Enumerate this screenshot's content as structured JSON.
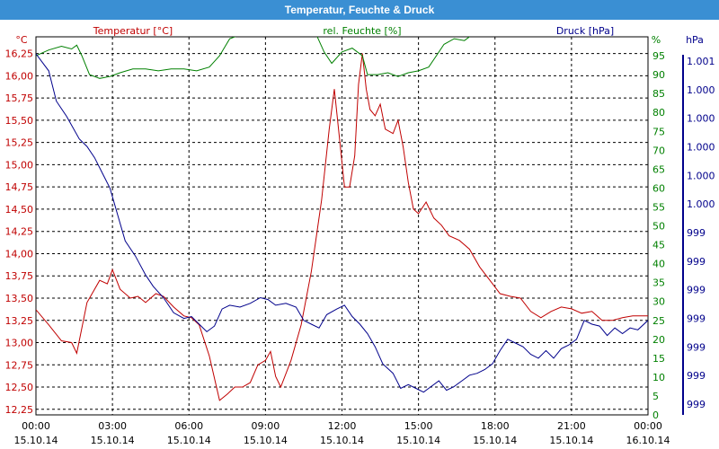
{
  "window": {
    "title": "Temperatur, Feuchte & Druck"
  },
  "chart_data": {
    "type": "line",
    "title": "Temperatur, Feuchte & Druck",
    "grid": true,
    "x": {
      "ticks": [
        {
          "time": "00:00",
          "date": "15.10.14"
        },
        {
          "time": "03:00",
          "date": "15.10.14"
        },
        {
          "time": "06:00",
          "date": "15.10.14"
        },
        {
          "time": "09:00",
          "date": "15.10.14"
        },
        {
          "time": "12:00",
          "date": "15.10.14"
        },
        {
          "time": "15:00",
          "date": "15.10.14"
        },
        {
          "time": "18:00",
          "date": "15.10.14"
        },
        {
          "time": "21:00",
          "date": "15.10.14"
        },
        {
          "time": "00:00",
          "date": "16.10.14"
        }
      ],
      "range": [
        "15.10.14 00:00",
        "16.10.14 00:00"
      ]
    },
    "axes": {
      "temperature": {
        "label": "Temperatur [°C]",
        "unit": "°C",
        "color": "#c00000",
        "ylim": [
          12.1875,
          16.4375
        ],
        "ticks": [
          "12,25",
          "12,50",
          "12,75",
          "13,00",
          "13,25",
          "13,50",
          "13,75",
          "14,00",
          "14,25",
          "14,50",
          "14,75",
          "15,00",
          "15,25",
          "15,50",
          "15,75",
          "16,00",
          "16,25"
        ]
      },
      "humidity": {
        "label": "rel. Feuchte [%]",
        "unit": "%",
        "color": "#008000",
        "ylim": [
          0,
          100
        ],
        "ticks": [
          "0",
          "5",
          "10",
          "15",
          "20",
          "25",
          "30",
          "35",
          "40",
          "45",
          "50",
          "55",
          "60",
          "65",
          "70",
          "75",
          "80",
          "85",
          "90",
          "95"
        ]
      },
      "pressure": {
        "label": "Druck [hPa]",
        "unit": "hPa",
        "color": "#00008b",
        "ticks": [
          "999",
          "999",
          "999",
          "999",
          "999",
          "999",
          "999",
          "1.000",
          "1.000",
          "1.000",
          "1.000",
          "1.000",
          "1.001"
        ]
      }
    },
    "series": [
      {
        "name": "Temperatur [°C]",
        "axis": "temperature",
        "color": "#c00000",
        "points": [
          [
            0.0,
            13.37
          ],
          [
            0.5,
            13.2
          ],
          [
            1.0,
            13.02
          ],
          [
            1.4,
            13.0
          ],
          [
            1.6,
            12.88
          ],
          [
            2.0,
            13.45
          ],
          [
            2.5,
            13.7
          ],
          [
            2.8,
            13.66
          ],
          [
            3.0,
            13.82
          ],
          [
            3.3,
            13.6
          ],
          [
            3.7,
            13.5
          ],
          [
            4.0,
            13.52
          ],
          [
            4.3,
            13.45
          ],
          [
            4.7,
            13.55
          ],
          [
            5.0,
            13.52
          ],
          [
            5.4,
            13.4
          ],
          [
            5.8,
            13.3
          ],
          [
            6.1,
            13.28
          ],
          [
            6.4,
            13.2
          ],
          [
            6.8,
            12.85
          ],
          [
            7.0,
            12.6
          ],
          [
            7.2,
            12.35
          ],
          [
            7.5,
            12.42
          ],
          [
            7.8,
            12.5
          ],
          [
            8.1,
            12.5
          ],
          [
            8.4,
            12.55
          ],
          [
            8.7,
            12.75
          ],
          [
            9.0,
            12.8
          ],
          [
            9.2,
            12.9
          ],
          [
            9.4,
            12.62
          ],
          [
            9.6,
            12.5
          ],
          [
            10.0,
            12.8
          ],
          [
            10.4,
            13.2
          ],
          [
            10.8,
            13.8
          ],
          [
            11.2,
            14.6
          ],
          [
            11.5,
            15.4
          ],
          [
            11.7,
            15.85
          ],
          [
            11.9,
            15.3
          ],
          [
            12.1,
            14.75
          ],
          [
            12.3,
            14.75
          ],
          [
            12.5,
            15.1
          ],
          [
            12.65,
            15.9
          ],
          [
            12.8,
            16.25
          ],
          [
            12.95,
            15.85
          ],
          [
            13.1,
            15.62
          ],
          [
            13.3,
            15.55
          ],
          [
            13.5,
            15.68
          ],
          [
            13.7,
            15.4
          ],
          [
            14.0,
            15.35
          ],
          [
            14.2,
            15.5
          ],
          [
            14.4,
            15.2
          ],
          [
            14.6,
            14.8
          ],
          [
            14.8,
            14.5
          ],
          [
            15.0,
            14.45
          ],
          [
            15.3,
            14.58
          ],
          [
            15.6,
            14.4
          ],
          [
            15.9,
            14.32
          ],
          [
            16.2,
            14.2
          ],
          [
            16.6,
            14.15
          ],
          [
            17.0,
            14.05
          ],
          [
            17.4,
            13.85
          ],
          [
            17.8,
            13.7
          ],
          [
            18.2,
            13.55
          ],
          [
            18.6,
            13.52
          ],
          [
            19.0,
            13.5
          ],
          [
            19.4,
            13.35
          ],
          [
            19.8,
            13.28
          ],
          [
            20.2,
            13.35
          ],
          [
            20.6,
            13.4
          ],
          [
            21.0,
            13.38
          ],
          [
            21.4,
            13.33
          ],
          [
            21.8,
            13.35
          ],
          [
            22.2,
            13.25
          ],
          [
            22.6,
            13.25
          ],
          [
            23.0,
            13.28
          ],
          [
            23.4,
            13.3
          ],
          [
            23.8,
            13.3
          ],
          [
            24.0,
            13.3
          ]
        ]
      },
      {
        "name": "rel. Feuchte [%]",
        "axis": "humidity",
        "color": "#008000",
        "points": [
          [
            0.0,
            95.0
          ],
          [
            0.5,
            96.5
          ],
          [
            1.0,
            97.5
          ],
          [
            1.4,
            96.8
          ],
          [
            1.6,
            97.8
          ],
          [
            1.8,
            95.0
          ],
          [
            2.1,
            90.0
          ],
          [
            2.5,
            89.0
          ],
          [
            2.9,
            89.5
          ],
          [
            3.3,
            90.5
          ],
          [
            3.8,
            91.5
          ],
          [
            4.3,
            91.5
          ],
          [
            4.8,
            91.0
          ],
          [
            5.3,
            91.5
          ],
          [
            5.8,
            91.5
          ],
          [
            6.3,
            91.0
          ],
          [
            6.8,
            92.0
          ],
          [
            7.2,
            95.0
          ],
          [
            7.6,
            99.5
          ],
          [
            8.2,
            101.0
          ],
          [
            8.8,
            101.0
          ],
          [
            9.4,
            100.5
          ],
          [
            10.0,
            101.0
          ],
          [
            10.6,
            101.0
          ],
          [
            11.0,
            100.5
          ],
          [
            11.3,
            96.0
          ],
          [
            11.6,
            93.0
          ],
          [
            12.0,
            96.0
          ],
          [
            12.4,
            97.0
          ],
          [
            12.8,
            95.0
          ],
          [
            13.0,
            90.0
          ],
          [
            13.4,
            90.0
          ],
          [
            13.8,
            90.5
          ],
          [
            14.2,
            89.5
          ],
          [
            14.6,
            90.5
          ],
          [
            15.0,
            91.0
          ],
          [
            15.4,
            92.0
          ],
          [
            15.7,
            95.0
          ],
          [
            16.0,
            98.0
          ],
          [
            16.4,
            99.5
          ],
          [
            16.8,
            99.0
          ],
          [
            17.2,
            101.0
          ],
          [
            17.6,
            101.0
          ],
          [
            18.0,
            101.0
          ]
        ]
      },
      {
        "name": "Druck [hPa]",
        "axis": "pressure",
        "color": "#00008b",
        "points": [
          [
            0.0,
            95.5
          ],
          [
            0.5,
            91.0
          ],
          [
            0.8,
            83.0
          ],
          [
            1.2,
            79.0
          ],
          [
            1.7,
            73.0
          ],
          [
            2.0,
            71.0
          ],
          [
            2.3,
            68.0
          ],
          [
            2.6,
            64.0
          ],
          [
            2.9,
            60.0
          ],
          [
            3.2,
            53.0
          ],
          [
            3.5,
            46.0
          ],
          [
            3.9,
            42.0
          ],
          [
            4.3,
            37.0
          ],
          [
            4.6,
            34.0
          ],
          [
            5.0,
            31.0
          ],
          [
            5.4,
            27.0
          ],
          [
            5.8,
            25.5
          ],
          [
            6.1,
            26.0
          ],
          [
            6.4,
            24.0
          ],
          [
            6.7,
            22.0
          ],
          [
            7.0,
            23.5
          ],
          [
            7.3,
            28.0
          ],
          [
            7.6,
            29.0
          ],
          [
            8.0,
            28.5
          ],
          [
            8.4,
            29.5
          ],
          [
            8.8,
            31.0
          ],
          [
            9.1,
            30.5
          ],
          [
            9.4,
            29.0
          ],
          [
            9.8,
            29.5
          ],
          [
            10.2,
            28.5
          ],
          [
            10.5,
            25.0
          ],
          [
            10.8,
            24.0
          ],
          [
            11.1,
            23.0
          ],
          [
            11.4,
            26.5
          ],
          [
            11.8,
            28.0
          ],
          [
            12.1,
            29.0
          ],
          [
            12.4,
            26.0
          ],
          [
            12.7,
            24.0
          ],
          [
            13.0,
            21.5
          ],
          [
            13.3,
            18.0
          ],
          [
            13.6,
            13.5
          ],
          [
            14.0,
            11.0
          ],
          [
            14.3,
            7.0
          ],
          [
            14.6,
            8.0
          ],
          [
            14.9,
            7.0
          ],
          [
            15.2,
            6.0
          ],
          [
            15.5,
            7.5
          ],
          [
            15.8,
            9.0
          ],
          [
            16.1,
            6.5
          ],
          [
            16.4,
            7.5
          ],
          [
            16.7,
            9.0
          ],
          [
            17.0,
            10.5
          ],
          [
            17.3,
            11.0
          ],
          [
            17.6,
            12.0
          ],
          [
            17.9,
            13.5
          ],
          [
            18.2,
            17.0
          ],
          [
            18.5,
            20.0
          ],
          [
            18.8,
            19.0
          ],
          [
            19.1,
            18.0
          ],
          [
            19.4,
            16.0
          ],
          [
            19.7,
            15.0
          ],
          [
            20.0,
            17.0
          ],
          [
            20.3,
            15.0
          ],
          [
            20.6,
            17.5
          ],
          [
            20.9,
            18.5
          ],
          [
            21.2,
            20.0
          ],
          [
            21.5,
            25.0
          ],
          [
            21.8,
            24.0
          ],
          [
            22.1,
            23.5
          ],
          [
            22.4,
            21.0
          ],
          [
            22.7,
            23.0
          ],
          [
            23.0,
            21.5
          ],
          [
            23.3,
            23.0
          ],
          [
            23.6,
            22.5
          ],
          [
            24.0,
            25.0
          ]
        ]
      }
    ]
  }
}
